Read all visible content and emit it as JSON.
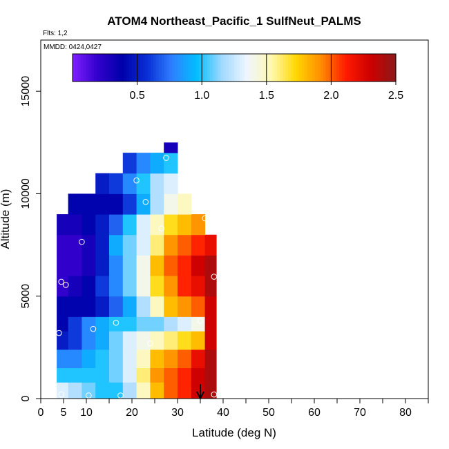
{
  "chart_data": {
    "type": "heatmap",
    "title": "ATOM4 Northeast_Pacific_1 SulfNeut_PALMS",
    "flights_note": "Flts: 1,2",
    "dates_note": "MMDD: 0424,0427",
    "xlabel": "Latitude (deg N)",
    "ylabel": "Altitude (m)",
    "xlim": [
      0,
      85
    ],
    "ylim": [
      0,
      17500
    ],
    "x_ticks": [
      0,
      5,
      10,
      20,
      30,
      40,
      50,
      60,
      70,
      80
    ],
    "y_ticks": [
      0,
      5000,
      10000,
      15000
    ],
    "y_tick_labels": [
      "0",
      "5000",
      "10000",
      "15000"
    ],
    "x_minor_ticks": [
      15,
      25,
      35,
      45,
      55,
      65,
      75,
      85
    ],
    "colorbar": {
      "min": 0,
      "max": 2.5,
      "ticks": [
        0.5,
        1.0,
        1.5,
        2.0,
        2.5
      ],
      "tick_labels": [
        "0.5",
        "1.0",
        "1.5",
        "2.0",
        "2.5"
      ],
      "colors": [
        "#7f1fff",
        "#3300cc",
        "#0000aa",
        "#0a2fd6",
        "#2f7fff",
        "#00bfff",
        "#9fd8ff",
        "#eef6ff",
        "#fff8b0",
        "#ffd700",
        "#ff8c00",
        "#ff1a00",
        "#cc0000",
        "#8b1a1a"
      ]
    },
    "grid": {
      "lat_edges": [
        3.5,
        6,
        9,
        12,
        15,
        18,
        21,
        24,
        27,
        30,
        33,
        36,
        38.5
      ],
      "rows": [
        {
          "alt": [
            0,
            800
          ],
          "values": [
            1.3,
            1.2,
            1.1,
            1.0,
            1.0,
            1.2,
            1.5,
            1.8,
            2.0,
            2.1,
            2.3,
            2.4
          ]
        },
        {
          "alt": [
            800,
            1500
          ],
          "values": [
            1.0,
            1.0,
            1.0,
            1.0,
            1.1,
            1.3,
            1.6,
            1.9,
            2.0,
            2.1,
            2.3,
            2.4
          ]
        },
        {
          "alt": [
            1500,
            2400
          ],
          "values": [
            0.8,
            0.8,
            0.9,
            1.0,
            1.1,
            1.3,
            1.5,
            1.8,
            1.9,
            2.0,
            2.2,
            2.4
          ]
        },
        {
          "alt": [
            2400,
            3300
          ],
          "values": [
            0.5,
            0.6,
            0.8,
            0.9,
            1.1,
            1.3,
            1.4,
            1.5,
            1.6,
            1.7,
            1.8,
            2.3
          ]
        },
        {
          "alt": [
            3300,
            4000
          ],
          "values": [
            0.4,
            0.6,
            0.8,
            0.9,
            1.0,
            1.0,
            1.1,
            1.1,
            1.2,
            1.3,
            1.4,
            2.3
          ]
        },
        {
          "alt": [
            4000,
            5000
          ],
          "values": [
            0.4,
            0.4,
            0.4,
            0.5,
            0.7,
            0.9,
            1.2,
            1.5,
            1.8,
            1.9,
            2.0,
            2.3
          ]
        },
        {
          "alt": [
            5000,
            6000
          ],
          "values": [
            0.2,
            0.3,
            0.4,
            0.6,
            0.8,
            1.1,
            1.4,
            1.7,
            1.9,
            2.1,
            2.2,
            2.4
          ]
        },
        {
          "alt": [
            6000,
            7000
          ],
          "values": [
            0.2,
            0.2,
            0.3,
            0.5,
            0.8,
            1.1,
            1.4,
            1.8,
            2.0,
            2.1,
            2.3,
            2.4
          ]
        },
        {
          "alt": [
            7000,
            8000
          ],
          "values": [
            0.2,
            0.2,
            0.3,
            0.5,
            0.9,
            1.1,
            1.3,
            1.6,
            1.9,
            2.0,
            2.1,
            2.2
          ]
        },
        {
          "alt": [
            8000,
            9000
          ],
          "values": [
            0.3,
            0.3,
            0.4,
            0.5,
            0.7,
            1.0,
            1.3,
            1.5,
            1.7,
            1.8,
            1.9,
            null
          ]
        },
        {
          "alt": [
            9000,
            10000
          ],
          "values": [
            null,
            0.4,
            0.4,
            0.4,
            0.4,
            0.6,
            0.9,
            1.2,
            1.4,
            1.5,
            null,
            null
          ]
        },
        {
          "alt": [
            10000,
            11000
          ],
          "values": [
            null,
            null,
            null,
            0.5,
            0.6,
            0.8,
            1.0,
            1.2,
            1.3,
            null,
            null,
            null
          ]
        },
        {
          "alt": [
            11000,
            12000
          ],
          "values": [
            null,
            null,
            null,
            null,
            null,
            0.6,
            0.8,
            0.9,
            1.0,
            null,
            null,
            null
          ]
        },
        {
          "alt": [
            12000,
            12500
          ],
          "values": [
            null,
            null,
            null,
            null,
            null,
            null,
            null,
            null,
            0.3,
            null,
            null,
            null
          ]
        }
      ]
    },
    "sample_points": [
      {
        "lat": 4.5,
        "alt": 200
      },
      {
        "lat": 10.5,
        "alt": 150
      },
      {
        "lat": 17.5,
        "alt": 150
      },
      {
        "lat": 38,
        "alt": 200
      },
      {
        "lat": 24,
        "alt": 2700
      },
      {
        "lat": 11.5,
        "alt": 3400
      },
      {
        "lat": 4,
        "alt": 3200
      },
      {
        "lat": 16.5,
        "alt": 3700
      },
      {
        "lat": 35,
        "alt": 3800
      },
      {
        "lat": 4.5,
        "alt": 5700
      },
      {
        "lat": 5.5,
        "alt": 5550
      },
      {
        "lat": 38,
        "alt": 5950
      },
      {
        "lat": 9,
        "alt": 7650
      },
      {
        "lat": 26.5,
        "alt": 8300
      },
      {
        "lat": 36,
        "alt": 8800
      },
      {
        "lat": 5,
        "alt": 9850
      },
      {
        "lat": 23,
        "alt": 9600
      },
      {
        "lat": 21,
        "alt": 10650
      },
      {
        "lat": 27.5,
        "alt": 11750
      }
    ],
    "arrow_marker": {
      "lat": 35,
      "alt_from": 700,
      "alt_to": 0
    }
  }
}
